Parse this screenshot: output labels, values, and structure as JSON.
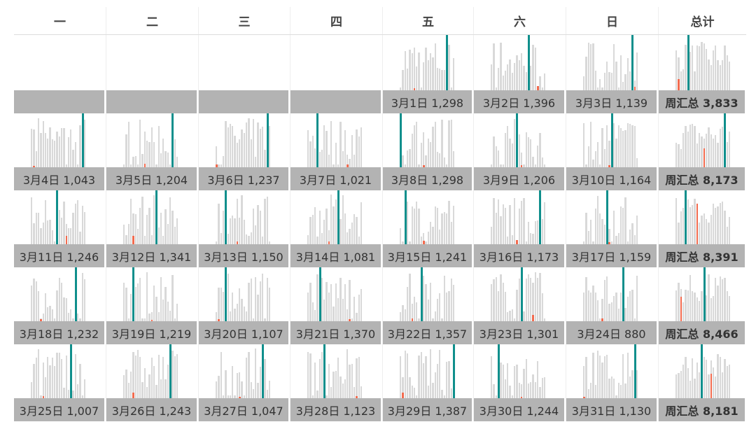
{
  "headers": [
    "一",
    "二",
    "三",
    "四",
    "五",
    "六",
    "日",
    "总计"
  ],
  "colors": {
    "bar": "#d9d9d9",
    "highlight": "#0f8f8c",
    "accent": "#f26b4f",
    "label_bg": "#b3b3b3"
  },
  "chart_data": {
    "type": "table",
    "weeks": [
      {
        "days": [
          null,
          null,
          null,
          null,
          {
            "label": "3月1日 1,298",
            "teal": 20,
            "red": 6,
            "red_h": 0.04
          },
          {
            "label": "3月2日 1,396",
            "teal": 16,
            "red": 20,
            "red_h": 0.08
          },
          {
            "label": "3月3日 1,139",
            "teal": 21,
            "red": 22,
            "red_h": 0.06
          }
        ],
        "total": {
          "label": "周汇总 3,833",
          "teal": 5,
          "red": 1,
          "red_h": 0.2
        }
      },
      {
        "days": [
          {
            "label": "3月4日 1,043",
            "teal": 22,
            "red": 1,
            "red_h": 0.03
          },
          {
            "label": "3月5日 1,204",
            "teal": 21,
            "red": 9,
            "red_h": 0.06
          },
          {
            "label": "3月6日 1,237",
            "teal": 22,
            "red": 0,
            "red_h": 0.05
          },
          {
            "label": "3月7日 1,021",
            "teal": 4,
            "red": 17,
            "red_h": 0.05
          },
          {
            "label": "3月8日 1,298",
            "teal": 0,
            "red": 10,
            "red_h": 0.04
          },
          {
            "label": "3月9日 1,206",
            "teal": 11,
            "red": 13,
            "red_h": 0.04
          },
          {
            "label": "3月10日 1,164",
            "teal": 12,
            "red": 11,
            "red_h": 0.04
          }
        ],
        "total": {
          "label": "周汇总 8,173",
          "teal": 21,
          "red": 12,
          "red_h": 0.35
        }
      },
      {
        "days": [
          {
            "label": "3月11日 1,246",
            "teal": 11,
            "red": 15,
            "red_h": 0.15
          },
          {
            "label": "3月12日 1,341",
            "teal": 14,
            "red": 4,
            "red_h": 0.15
          },
          {
            "label": "3月13日 1,150",
            "teal": 4,
            "red": 9,
            "red_h": 0.05
          },
          {
            "label": "3月14日 1,081",
            "teal": 13,
            "red": 9,
            "red_h": 0.05
          },
          {
            "label": "3月15日 1,241",
            "teal": 2,
            "red": 10,
            "red_h": 0.06
          },
          {
            "label": "3月16日 1,173",
            "teal": 21,
            "red": 11,
            "red_h": 0.08
          },
          {
            "label": "3月17日 1,159",
            "teal": 10,
            "red": 11,
            "red_h": 0.04
          }
        ],
        "total": {
          "label": "周汇总 8,391",
          "teal": 4,
          "red": 9,
          "red_h": 0.75
        }
      },
      {
        "days": [
          {
            "label": "3月18日 1,232",
            "teal": 19,
            "red": 4,
            "red_h": 0.04
          },
          {
            "label": "3月19日 1,219",
            "teal": 4,
            "red": 12,
            "red_h": 0.02
          },
          {
            "label": "3月20日 1,107",
            "teal": 4,
            "red": 1,
            "red_h": 0.04
          },
          {
            "label": "3月21日 1,370",
            "teal": 5,
            "red": 18,
            "red_h": 0.04
          },
          {
            "label": "3月22日 1,357",
            "teal": 9,
            "red": 5,
            "red_h": 0.05
          },
          {
            "label": "3月23日 1,301",
            "teal": 13,
            "red": 18,
            "red_h": 0.12
          },
          {
            "label": "3月24日 880",
            "teal": 17,
            "red": 8,
            "red_h": 0.05
          }
        ],
        "total": {
          "label": "周汇总 8,466",
          "teal": 12,
          "red": 2,
          "red_h": 0.45
        }
      },
      {
        "days": [
          {
            "label": "3月25日 1,007",
            "teal": 17,
            "red": 5,
            "red_h": 0.04
          },
          {
            "label": "3月26日 1,243",
            "teal": 20,
            "red": 4,
            "red_h": 0.1
          },
          {
            "label": "3月27日 1,047",
            "teal": 20,
            "red": 10,
            "red_h": 0.03
          },
          {
            "label": "3月28日 1,123",
            "teal": 7,
            "red": 21,
            "red_h": 0.04
          },
          {
            "label": "3月29日 1,387",
            "teal": 23,
            "red": 1,
            "red_h": 0.1
          },
          {
            "label": "3月30日 1,244",
            "teal": 3,
            "red": 13,
            "red_h": 0.03
          },
          {
            "label": "3月31日 1,130",
            "teal": 22,
            "red": 0,
            "red_h": 0.03
          }
        ],
        "total": {
          "label": "周汇总 8,181",
          "teal": 11,
          "red": 15,
          "red_h": 0.45
        }
      }
    ]
  }
}
